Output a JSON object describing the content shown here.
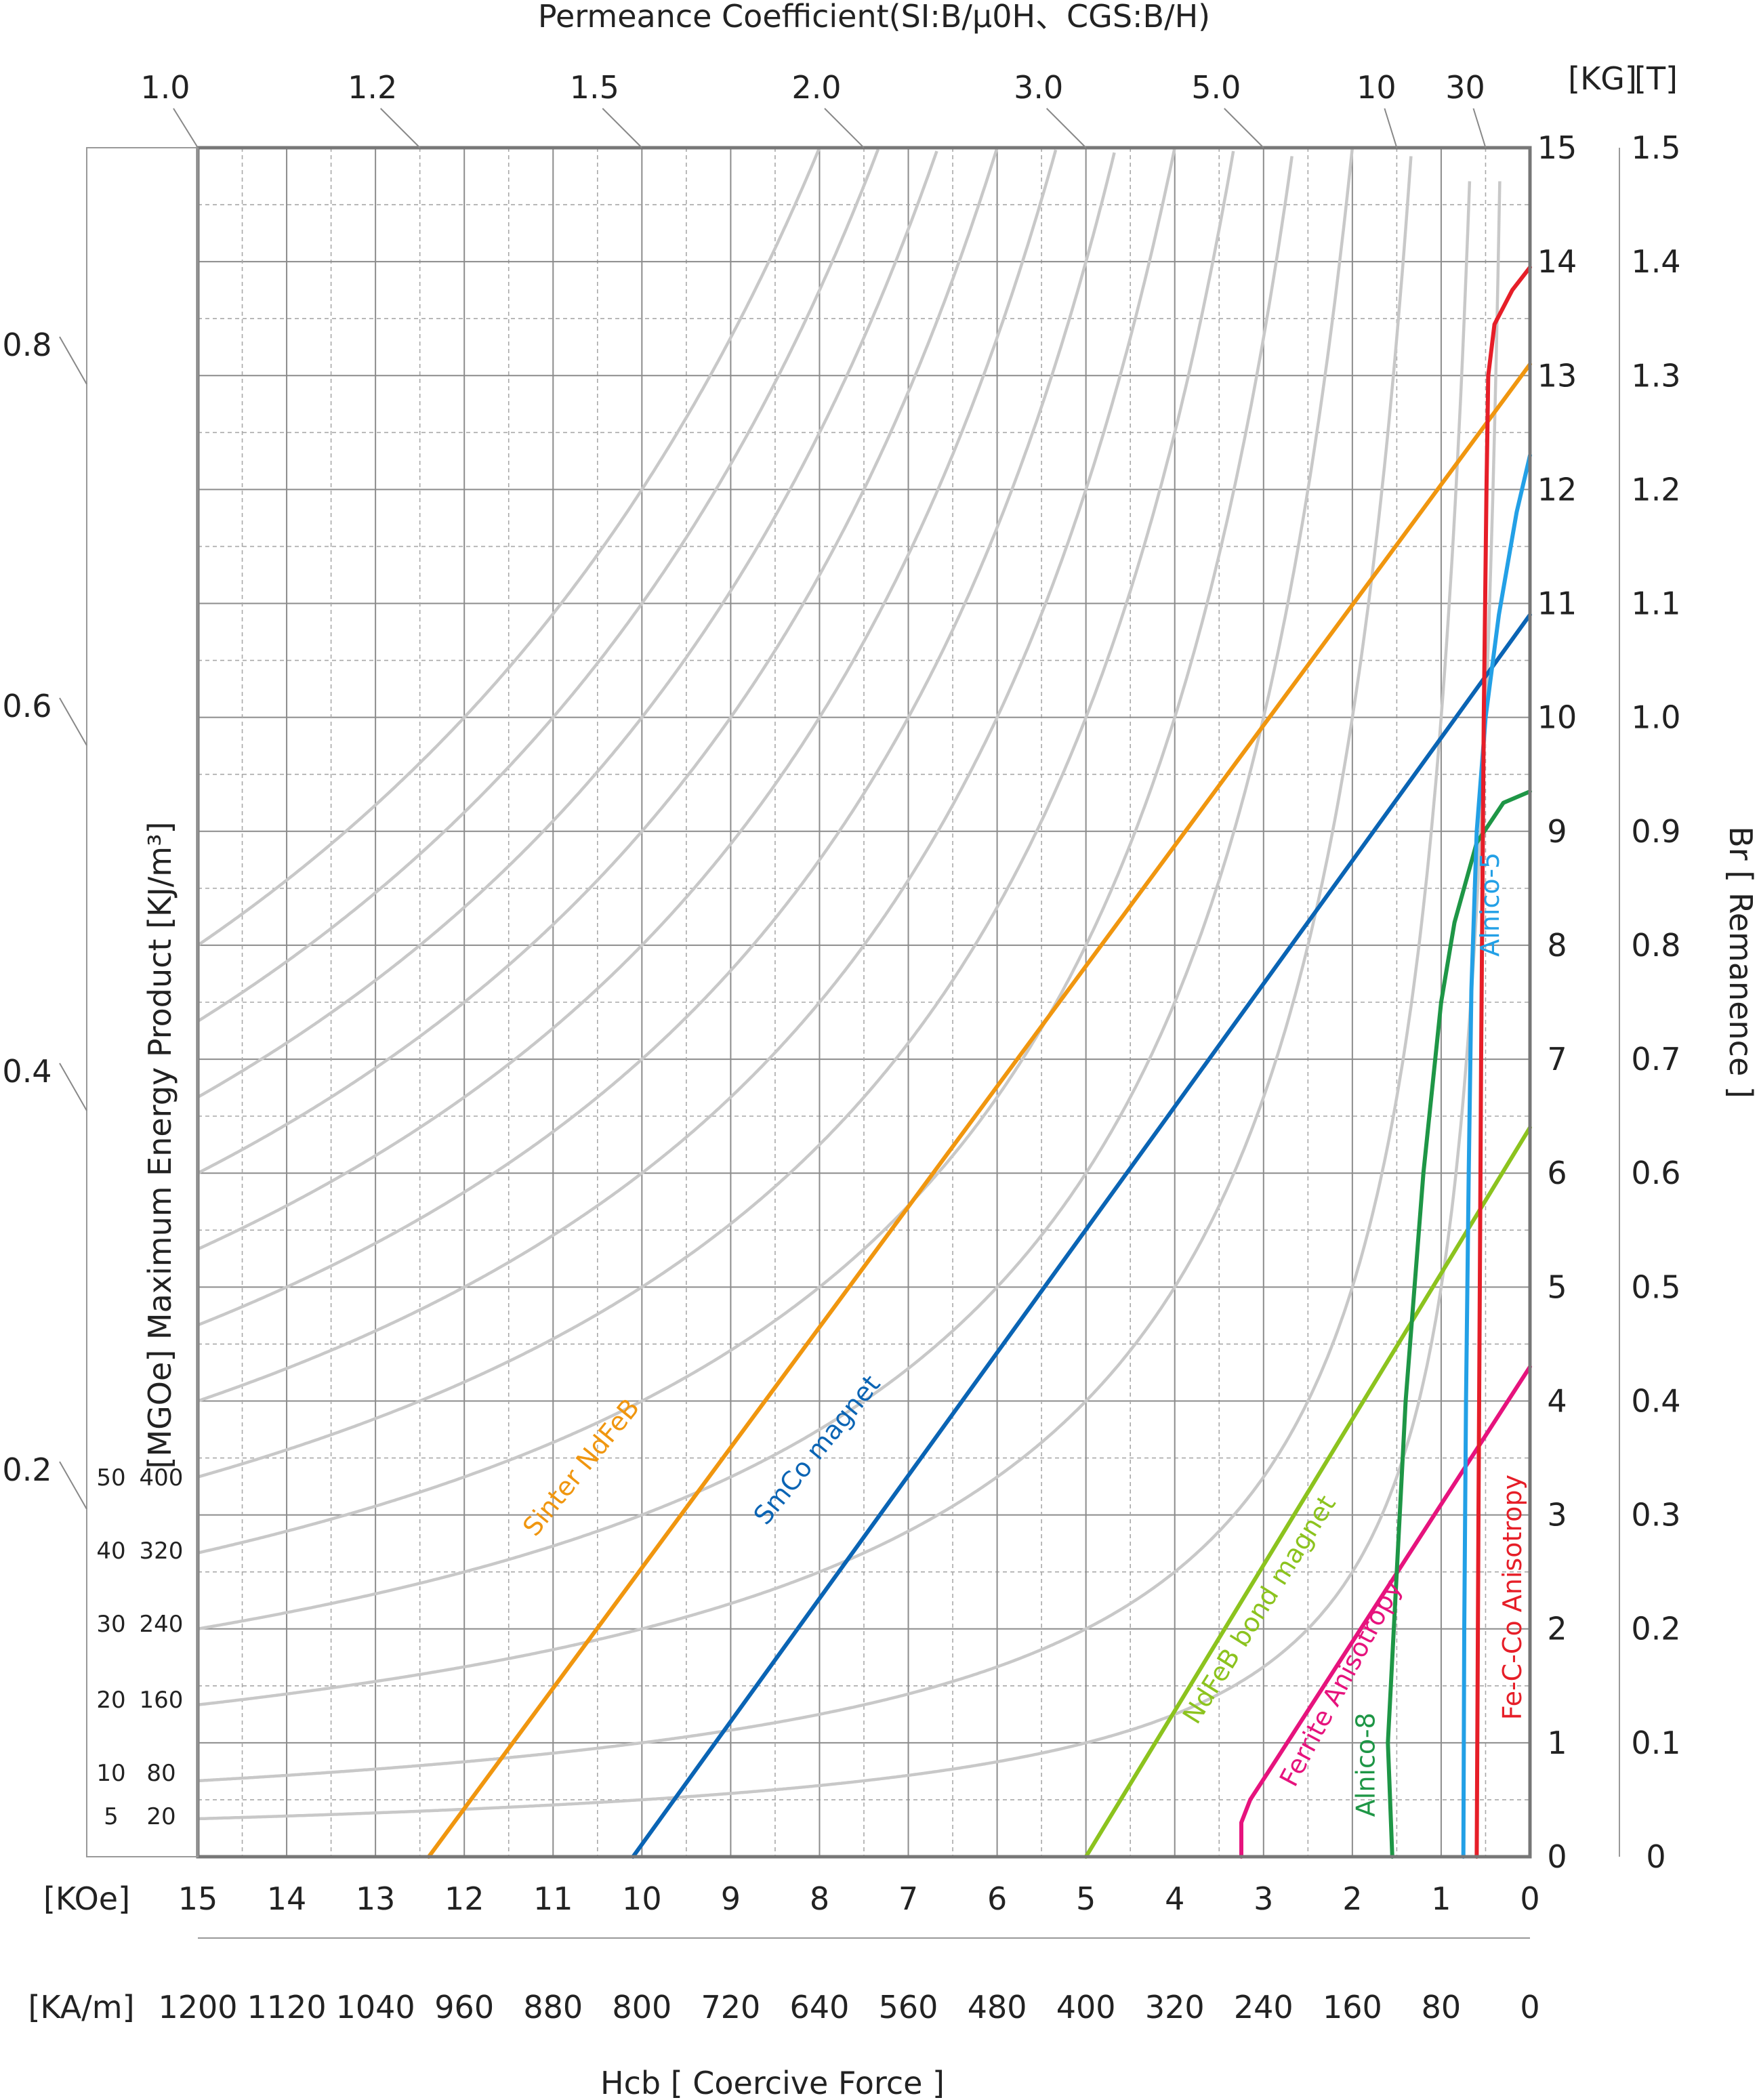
{
  "chart_data": {
    "type": "line",
    "title": "Permeance Coefficient(SI:B/μ0H、CGS:B/H)",
    "xlabel": "Hcb [ Coercive Force ]",
    "ylabel_right": "Br [ Remanence ]",
    "ylabel_left": "[MGOe] Maximum Energy Product [KJ/m³]",
    "x_unit_koe": "[KOe]",
    "x_unit_kam": "[KA/m]",
    "y_unit_kg": "[KG]",
    "y_unit_t": "[T]",
    "xlim_koe": [
      15,
      0
    ],
    "ylim_kg": [
      0,
      15
    ],
    "x_ticks_koe": [
      "15",
      "14",
      "13",
      "12",
      "11",
      "10",
      "9",
      "8",
      "7",
      "6",
      "5",
      "4",
      "3",
      "2",
      "1",
      "0"
    ],
    "x_ticks_kam": [
      "1200",
      "1120",
      "1040",
      "960",
      "880",
      "800",
      "720",
      "640",
      "560",
      "480",
      "400",
      "320",
      "240",
      "160",
      "80",
      "0"
    ],
    "y_ticks_kg": [
      "0",
      "1",
      "2",
      "3",
      "4",
      "5",
      "6",
      "7",
      "8",
      "9",
      "10",
      "11",
      "12",
      "13",
      "14",
      "15"
    ],
    "y_ticks_t": [
      "0",
      "0.1",
      "0.2",
      "0.3",
      "0.4",
      "0.5",
      "0.6",
      "0.7",
      "0.8",
      "0.9",
      "1.0",
      "1.1",
      "1.2",
      "1.3",
      "1.4",
      "1.5"
    ],
    "permeance_ticks": [
      {
        "label": "1.0",
        "value": 1.0
      },
      {
        "label": "1.2",
        "value": 1.2
      },
      {
        "label": "1.5",
        "value": 1.5
      },
      {
        "label": "2.0",
        "value": 2.0
      },
      {
        "label": "3.0",
        "value": 3.0
      },
      {
        "label": "5.0",
        "value": 5.0
      },
      {
        "label": "10",
        "value": 10
      },
      {
        "label": "30",
        "value": 30
      }
    ],
    "pc_scale_labels": [
      "0.8",
      "0.6",
      "0.4",
      "0.2"
    ],
    "energy_contours": [
      {
        "mgoe": "5",
        "kjm3": "20",
        "bh": 5
      },
      {
        "mgoe": "10",
        "kjm3": "80",
        "bh": 10
      },
      {
        "mgoe": "20",
        "kjm3": "160",
        "bh": 20
      },
      {
        "mgoe": "30",
        "kjm3": "240",
        "bh": 30
      },
      {
        "mgoe": "40",
        "kjm3": "320",
        "bh": 40
      },
      {
        "mgoe": "50",
        "kjm3": "400",
        "bh": 50
      }
    ],
    "series": [
      {
        "name": "Sinter NdFeB",
        "color": "#f0960f",
        "points": [
          [
            12.4,
            0
          ],
          [
            0,
            13.1
          ]
        ]
      },
      {
        "name": "SmCo magnet",
        "color": "#0a64b4",
        "points": [
          [
            10.1,
            0
          ],
          [
            0,
            10.9
          ]
        ]
      },
      {
        "name": "NdFeB bond magnet",
        "color": "#8cc31e",
        "points": [
          [
            5,
            0
          ],
          [
            0,
            6.4
          ]
        ]
      },
      {
        "name": "Ferrite Anisotropy",
        "color": "#e6137d",
        "points": [
          [
            3.25,
            0
          ],
          [
            3.25,
            0.3
          ],
          [
            3.15,
            0.5
          ],
          [
            2.9,
            0.8
          ],
          [
            0,
            4.3
          ]
        ]
      },
      {
        "name": "Alnico-8",
        "color": "#1e9646",
        "points": [
          [
            1.55,
            0
          ],
          [
            1.6,
            1
          ],
          [
            1.5,
            2.5
          ],
          [
            1.4,
            4
          ],
          [
            1.2,
            6
          ],
          [
            1.0,
            7.5
          ],
          [
            0.85,
            8.2
          ],
          [
            0.6,
            8.9
          ],
          [
            0.3,
            9.25
          ],
          [
            0,
            9.35
          ]
        ]
      },
      {
        "name": "Alnico-5",
        "color": "#23a0e6",
        "points": [
          [
            0.75,
            0
          ],
          [
            0.74,
            2
          ],
          [
            0.72,
            4
          ],
          [
            0.69,
            6
          ],
          [
            0.66,
            7.6
          ],
          [
            0.6,
            9
          ],
          [
            0.5,
            10
          ],
          [
            0.35,
            10.9
          ],
          [
            0.15,
            11.8
          ],
          [
            0,
            12.3
          ]
        ]
      },
      {
        "name": "Fe-C-Co Anisotropy",
        "color": "#e61e28",
        "points": [
          [
            0.6,
            0
          ],
          [
            0.58,
            3
          ],
          [
            0.55,
            7
          ],
          [
            0.52,
            10
          ],
          [
            0.49,
            12
          ],
          [
            0.47,
            13.0
          ],
          [
            0.4,
            13.45
          ],
          [
            0.2,
            13.75
          ],
          [
            0,
            13.95
          ]
        ]
      }
    ]
  }
}
